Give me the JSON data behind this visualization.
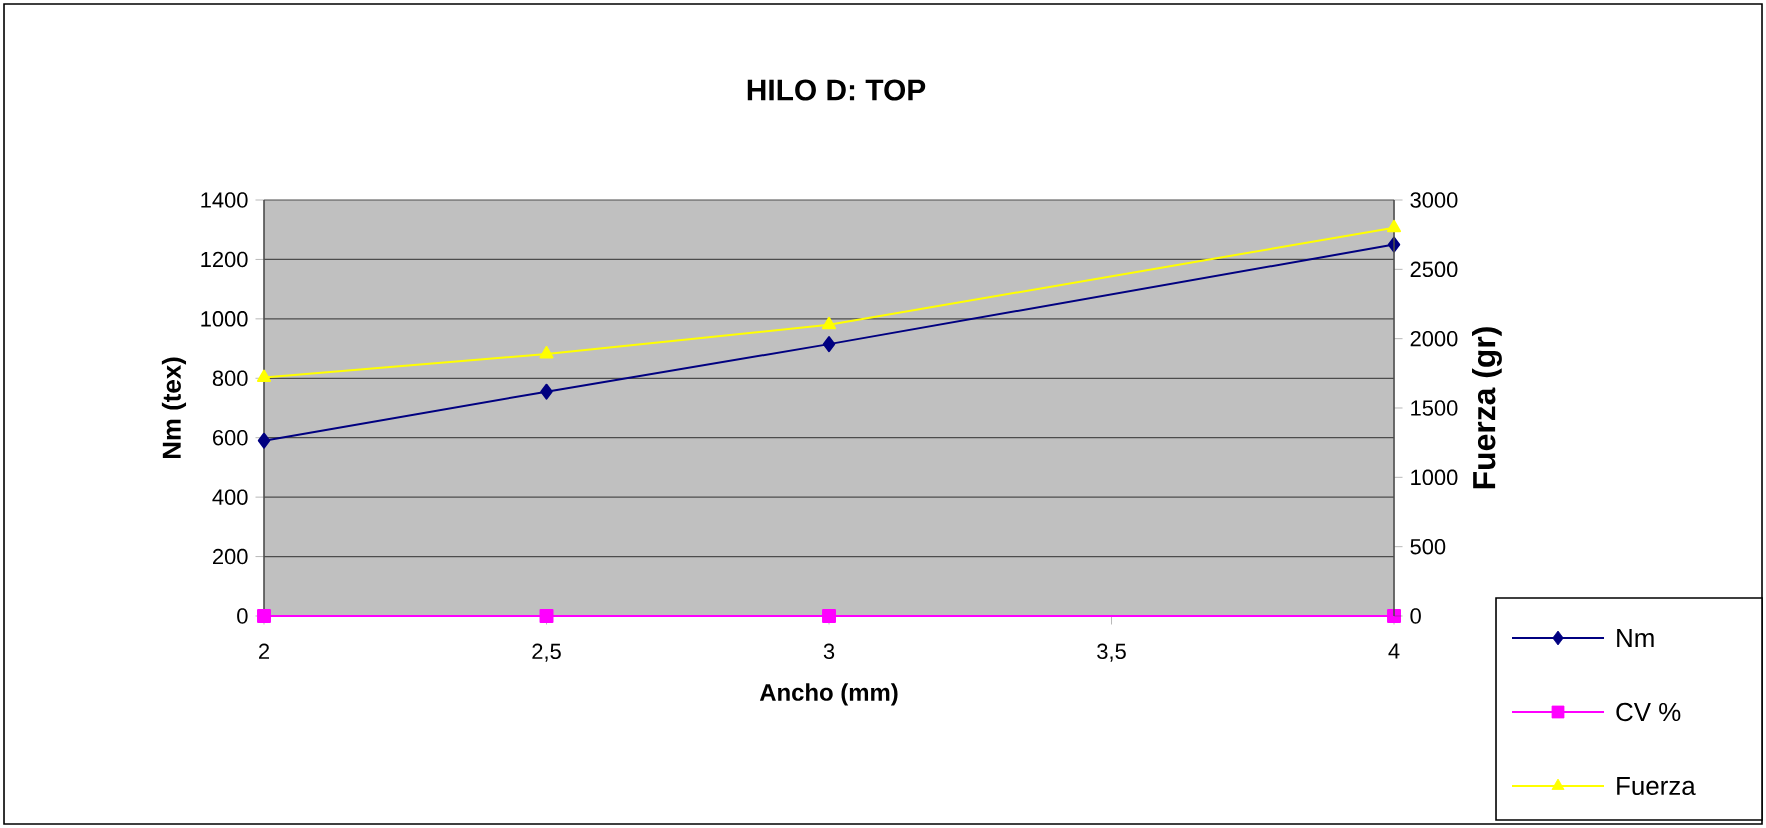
{
  "chart_data": {
    "type": "line",
    "title": "HILO D: TOP",
    "xlabel": "Ancho (mm)",
    "ylabel": "Nm (tex)",
    "y2label": "Fuerza (gr)",
    "series": [
      {
        "name": "Nm",
        "color": "#000080",
        "marker": "diamond",
        "x": [
          2,
          2.5,
          3,
          4
        ],
        "values": [
          590,
          755,
          915,
          1250
        ]
      },
      {
        "name": "CV %",
        "color": "#ff00ff",
        "marker": "square",
        "x": [
          2,
          2.5,
          3,
          4
        ],
        "values": [
          0,
          0,
          0,
          0
        ]
      },
      {
        "name": "Fuerza",
        "color": "#ffff00",
        "marker": "triangle",
        "axis": "y2",
        "x": [
          2,
          2.5,
          3,
          4
        ],
        "values": [
          1720,
          1890,
          2100,
          2800
        ]
      }
    ],
    "xlim": [
      2,
      4
    ],
    "xticks": [
      2,
      {
        "value": 2.5,
        "label": "2,5"
      },
      3,
      {
        "value": 3.5,
        "label": "3,5"
      },
      4
    ],
    "ylim": [
      0,
      1400
    ],
    "yticks": [
      0,
      200,
      400,
      600,
      800,
      1000,
      1200,
      1400
    ],
    "y2lim": [
      0,
      3000
    ],
    "y2ticks": [
      0,
      500,
      1000,
      1500,
      2000,
      2500,
      3000
    ],
    "grid": "y",
    "legend": "bottom right",
    "line_style": "solid"
  }
}
